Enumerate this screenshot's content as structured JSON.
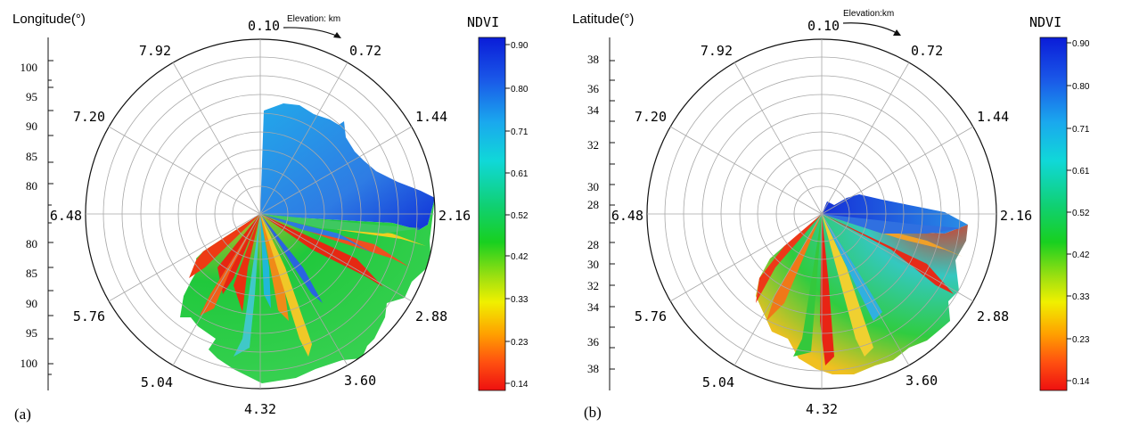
{
  "chart_data": [
    {
      "type": "polar-area",
      "panel_label": "(a)",
      "radial_title": "Longitude(°)",
      "radial_ticks_upper": [
        "100",
        "95",
        "90",
        "85",
        "80"
      ],
      "radial_ticks_lower": [
        "80",
        "85",
        "90",
        "95",
        "100"
      ],
      "angular_axis_title": "Elevation: km",
      "angular_ticks": [
        "0.10",
        "0.72",
        "1.44",
        "2.16",
        "2.88",
        "3.60",
        "4.32",
        "5.04",
        "5.76",
        "6.48",
        "7.20",
        "7.92"
      ],
      "colorbar": {
        "title": "NDVI",
        "ticks": [
          "0.90",
          "0.80",
          "0.71",
          "0.61",
          "0.52",
          "0.42",
          "0.33",
          "0.23",
          "0.14"
        ]
      }
    },
    {
      "type": "polar-area",
      "panel_label": "(b)",
      "radial_title": "Latitude(°)",
      "radial_ticks_upper": [
        "38",
        "36",
        "34",
        "32",
        "30",
        "28"
      ],
      "radial_ticks_lower": [
        "28",
        "30",
        "32",
        "34",
        "36",
        "38"
      ],
      "angular_axis_title": "Elevation:km",
      "angular_ticks": [
        "0.10",
        "0.72",
        "1.44",
        "2.16",
        "2.88",
        "3.60",
        "4.32",
        "5.04",
        "5.76",
        "6.48",
        "7.20",
        "7.92"
      ],
      "colorbar": {
        "title": "NDVI",
        "ticks": [
          "0.90",
          "0.80",
          "0.71",
          "0.61",
          "0.52",
          "0.42",
          "0.33",
          "0.23",
          "0.14"
        ]
      }
    }
  ],
  "colors": {
    "ndvi_high": "#1030d8",
    "ndvi_mid": "#20c83c",
    "ndvi_low": "#e81010",
    "grid": "#a8a8a8"
  }
}
